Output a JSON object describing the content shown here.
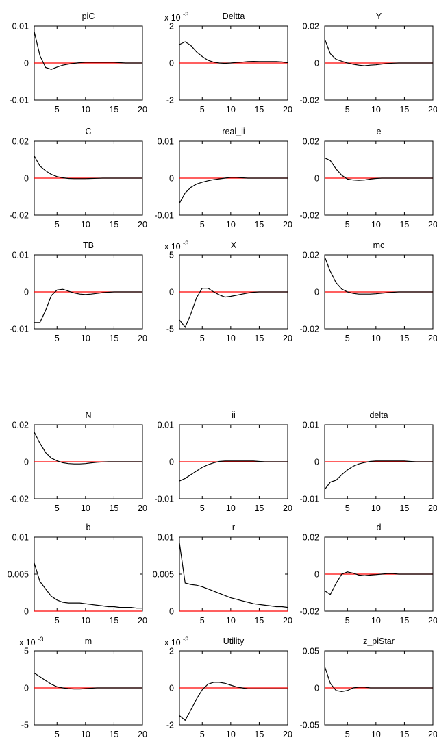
{
  "chart_data": [
    {
      "type": "line",
      "title": "piC",
      "ylim": [
        -0.01,
        0.01
      ],
      "yticks": [
        "0.01",
        "0",
        "-0.01"
      ],
      "xticks": [
        "5",
        "10",
        "15",
        "20"
      ],
      "xlim": [
        1,
        20
      ],
      "series": [
        {
          "values": [
            0.0085,
            0.002,
            -0.0012,
            -0.0017,
            -0.0011,
            -0.0006,
            -0.0003,
            -0.0001,
            0.0001,
            0.0002,
            0.0002,
            0.0002,
            0.0002,
            0.0002,
            0.0002,
            0.0001,
            0,
            0,
            0,
            0
          ]
        }
      ],
      "zero_line": 0
    },
    {
      "type": "line",
      "title": "Deltta",
      "multiplier": "x 10",
      "exponent": "-3",
      "ylim": [
        -2,
        2
      ],
      "yticks": [
        "2",
        "0",
        "-2"
      ],
      "xticks": [
        "5",
        "10",
        "15",
        "20"
      ],
      "xlim": [
        1,
        20
      ],
      "series": [
        {
          "values": [
            1.0,
            1.15,
            0.95,
            0.6,
            0.35,
            0.15,
            0.05,
            0.0,
            -0.02,
            0.0,
            0.03,
            0.05,
            0.08,
            0.09,
            0.08,
            0.08,
            0.08,
            0.08,
            0.06,
            0.02
          ]
        }
      ],
      "zero_line": 0
    },
    {
      "type": "line",
      "title": "Y",
      "ylim": [
        -0.02,
        0.02
      ],
      "yticks": [
        "0.02",
        "0",
        "-0.02"
      ],
      "xticks": [
        "5",
        "10",
        "15",
        "20"
      ],
      "xlim": [
        1,
        20
      ],
      "series": [
        {
          "values": [
            0.013,
            0.005,
            0.002,
            0.001,
            0.0,
            -0.0007,
            -0.0012,
            -0.0015,
            -0.0012,
            -0.001,
            -0.0006,
            -0.0003,
            -0.0001,
            0,
            0,
            0,
            0,
            0,
            0,
            0
          ]
        }
      ],
      "zero_line": 0
    },
    {
      "type": "line",
      "title": "C",
      "ylim": [
        -0.02,
        0.02
      ],
      "yticks": [
        "0.02",
        "0",
        "-0.02"
      ],
      "xticks": [
        "5",
        "10",
        "15",
        "20"
      ],
      "xlim": [
        1,
        20
      ],
      "series": [
        {
          "values": [
            0.012,
            0.0065,
            0.004,
            0.002,
            0.0008,
            0.0002,
            -0.0002,
            -0.0003,
            -0.0003,
            -0.0003,
            -0.0002,
            -0.0001,
            0,
            0,
            0,
            0,
            0,
            0,
            0,
            0
          ]
        }
      ],
      "zero_line": 0
    },
    {
      "type": "line",
      "title": "real_ii",
      "ylim": [
        -0.01,
        0.01
      ],
      "yticks": [
        "0.01",
        "0",
        "-0.01"
      ],
      "xticks": [
        "5",
        "10",
        "15",
        "20"
      ],
      "xlim": [
        1,
        20
      ],
      "series": [
        {
          "values": [
            -0.0068,
            -0.004,
            -0.0025,
            -0.0016,
            -0.0011,
            -0.0007,
            -0.0004,
            -0.0002,
            0,
            0.0002,
            0.0002,
            0.0001,
            0,
            0,
            0,
            0,
            0,
            0,
            0,
            0
          ]
        }
      ],
      "zero_line": 0
    },
    {
      "type": "line",
      "title": "e",
      "ylim": [
        -0.02,
        0.02
      ],
      "yticks": [
        "0.02",
        "0",
        "-0.02"
      ],
      "xticks": [
        "5",
        "10",
        "15",
        "20"
      ],
      "xlim": [
        1,
        20
      ],
      "series": [
        {
          "values": [
            0.011,
            0.0095,
            0.005,
            0.0015,
            -0.0005,
            -0.001,
            -0.0012,
            -0.001,
            -0.0005,
            -0.0002,
            0,
            0,
            0,
            0,
            0,
            0,
            0,
            0,
            0,
            0
          ]
        }
      ],
      "zero_line": 0
    },
    {
      "type": "line",
      "title": "TB",
      "ylim": [
        -0.01,
        0.01
      ],
      "yticks": [
        "0.01",
        "0",
        "-0.01"
      ],
      "xticks": [
        "5",
        "10",
        "15",
        "20"
      ],
      "xlim": [
        1,
        20
      ],
      "series": [
        {
          "values": [
            -0.0083,
            -0.0083,
            -0.005,
            -0.001,
            0.0005,
            0.0007,
            0.0002,
            -0.0003,
            -0.0006,
            -0.0007,
            -0.0006,
            -0.0004,
            -0.0002,
            -0.0001,
            0,
            0,
            0,
            0,
            0,
            0
          ]
        }
      ],
      "zero_line": 0
    },
    {
      "type": "line",
      "title": "X",
      "multiplier": "x 10",
      "exponent": "-3",
      "ylim": [
        -5,
        5
      ],
      "yticks": [
        "5",
        "0",
        "-5"
      ],
      "xticks": [
        "5",
        "10",
        "15",
        "20"
      ],
      "xlim": [
        1,
        20
      ],
      "series": [
        {
          "values": [
            -3.8,
            -4.8,
            -3.0,
            -0.8,
            0.5,
            0.5,
            0.0,
            -0.4,
            -0.7,
            -0.6,
            -0.45,
            -0.3,
            -0.15,
            -0.05,
            0,
            0,
            0,
            0,
            0,
            0
          ]
        }
      ],
      "zero_line": 0
    },
    {
      "type": "line",
      "title": "mc",
      "ylim": [
        -0.02,
        0.02
      ],
      "yticks": [
        "0.02",
        "0",
        "-0.02"
      ],
      "xticks": [
        "5",
        "10",
        "15",
        "20"
      ],
      "xlim": [
        1,
        20
      ],
      "series": [
        {
          "values": [
            0.019,
            0.011,
            0.005,
            0.0015,
            0.0,
            -0.0008,
            -0.0012,
            -0.0012,
            -0.0012,
            -0.001,
            -0.0007,
            -0.0004,
            -0.0002,
            0,
            0,
            0,
            0,
            0,
            0,
            0
          ]
        }
      ],
      "zero_line": 0
    },
    {
      "type": "line",
      "title": "N",
      "ylim": [
        -0.02,
        0.02
      ],
      "yticks": [
        "0.02",
        "0",
        "-0.02"
      ],
      "xticks": [
        "5",
        "10",
        "15",
        "20"
      ],
      "xlim": [
        1,
        20
      ],
      "series": [
        {
          "values": [
            0.016,
            0.01,
            0.005,
            0.002,
            0.0005,
            -0.0005,
            -0.001,
            -0.0012,
            -0.0012,
            -0.001,
            -0.0006,
            -0.0003,
            -0.0001,
            0,
            0,
            0,
            0,
            0,
            0,
            0
          ]
        }
      ],
      "zero_line": 0
    },
    {
      "type": "line",
      "title": "ii",
      "ylim": [
        -0.01,
        0.01
      ],
      "yticks": [
        "0.01",
        "0",
        "-0.01"
      ],
      "xticks": [
        "5",
        "10",
        "15",
        "20"
      ],
      "xlim": [
        1,
        20
      ],
      "series": [
        {
          "values": [
            -0.0052,
            -0.0045,
            -0.0035,
            -0.0025,
            -0.0015,
            -0.0008,
            -0.0003,
            0.0001,
            0.0002,
            0.0002,
            0.0002,
            0.0002,
            0.0002,
            0.0002,
            0.0001,
            0,
            0,
            0,
            0,
            0
          ]
        }
      ],
      "zero_line": 0
    },
    {
      "type": "line",
      "title": "delta",
      "ylim": [
        -0.01,
        0.01
      ],
      "yticks": [
        "0.01",
        "0",
        "-0.01"
      ],
      "xticks": [
        "5",
        "10",
        "15",
        "20"
      ],
      "xlim": [
        1,
        20
      ],
      "series": [
        {
          "values": [
            -0.0075,
            -0.0055,
            -0.005,
            -0.0035,
            -0.0022,
            -0.0012,
            -0.0006,
            -0.0002,
            0.0001,
            0.0002,
            0.0002,
            0.0002,
            0.0002,
            0.0002,
            0.0002,
            0.0001,
            0,
            0,
            0,
            0
          ]
        }
      ],
      "zero_line": 0
    },
    {
      "type": "line",
      "title": "b",
      "ylim": [
        0,
        0.01
      ],
      "yticks": [
        "0.01",
        "0.005",
        "0"
      ],
      "xticks": [
        "5",
        "10",
        "15",
        "20"
      ],
      "xlim": [
        1,
        20
      ],
      "series": [
        {
          "values": [
            0.0065,
            0.004,
            0.003,
            0.002,
            0.0015,
            0.0012,
            0.0011,
            0.0011,
            0.0011,
            0.001,
            0.0009,
            0.0008,
            0.0007,
            0.0006,
            0.0006,
            0.0005,
            0.0005,
            0.0005,
            0.0004,
            0.0004
          ]
        }
      ],
      "zero_line": 0
    },
    {
      "type": "line",
      "title": "r",
      "ylim": [
        0,
        0.01
      ],
      "yticks": [
        "0.01",
        "0.005",
        "0"
      ],
      "xticks": [
        "5",
        "10",
        "15",
        "20"
      ],
      "xlim": [
        1,
        20
      ],
      "series": [
        {
          "values": [
            0.0092,
            0.0038,
            0.0036,
            0.0035,
            0.0033,
            0.003,
            0.0027,
            0.0024,
            0.0021,
            0.0018,
            0.0016,
            0.0014,
            0.0012,
            0.001,
            0.0009,
            0.0008,
            0.0007,
            0.0006,
            0.0006,
            0.0005
          ]
        }
      ],
      "zero_line": 0
    },
    {
      "type": "line",
      "title": "d",
      "ylim": [
        -0.02,
        0.02
      ],
      "yticks": [
        "0.02",
        "0",
        "-0.02"
      ],
      "xticks": [
        "5",
        "10",
        "15",
        "20"
      ],
      "xlim": [
        1,
        20
      ],
      "series": [
        {
          "values": [
            -0.009,
            -0.011,
            -0.005,
            0.0,
            0.0012,
            0.0005,
            -0.0005,
            -0.0008,
            -0.0005,
            -0.0003,
            0,
            0.0003,
            0.0003,
            0,
            0,
            0,
            0,
            0,
            0,
            0
          ]
        }
      ],
      "zero_line": 0
    },
    {
      "type": "line",
      "title": "m",
      "multiplier": "x 10",
      "exponent": "-3",
      "ylim": [
        -5,
        5
      ],
      "yticks": [
        "5",
        "0",
        "-5"
      ],
      "xticks": [
        "5",
        "10",
        "15",
        "20"
      ],
      "xlim": [
        1,
        20
      ],
      "series": [
        {
          "values": [
            2.0,
            1.5,
            1.0,
            0.5,
            0.15,
            0.0,
            -0.1,
            -0.15,
            -0.15,
            -0.1,
            -0.05,
            0,
            0,
            0,
            0,
            0,
            0,
            0,
            0,
            0
          ]
        }
      ],
      "zero_line": 0
    },
    {
      "type": "line",
      "title": "Utility",
      "multiplier": "x 10",
      "exponent": "-3",
      "ylim": [
        -2,
        2
      ],
      "yticks": [
        "2",
        "0",
        "-2"
      ],
      "xticks": [
        "5",
        "10",
        "15",
        "20"
      ],
      "xlim": [
        1,
        20
      ],
      "series": [
        {
          "values": [
            -1.5,
            -1.75,
            -1.2,
            -0.6,
            -0.1,
            0.2,
            0.3,
            0.3,
            0.25,
            0.15,
            0.05,
            0,
            -0.05,
            -0.05,
            -0.05,
            -0.05,
            -0.05,
            -0.05,
            -0.05,
            -0.05
          ]
        }
      ],
      "zero_line": 0
    },
    {
      "type": "line",
      "title": "z_piStar",
      "ylim": [
        -0.05,
        0.05
      ],
      "yticks": [
        "0.05",
        "0",
        "-0.05"
      ],
      "xticks": [
        "5",
        "10",
        "15",
        "20"
      ],
      "xlim": [
        1,
        20
      ],
      "series": [
        {
          "values": [
            0.029,
            0.006,
            -0.0035,
            -0.005,
            -0.0035,
            0.0,
            0.001,
            0.001,
            0.0,
            0,
            0,
            0,
            0,
            0,
            0,
            0,
            0,
            0,
            0,
            0
          ]
        }
      ],
      "zero_line": 0
    }
  ],
  "colors": {
    "series": "#000000",
    "zero_line": "#ff0000",
    "axes": "#000000",
    "background": "#ffffff"
  }
}
